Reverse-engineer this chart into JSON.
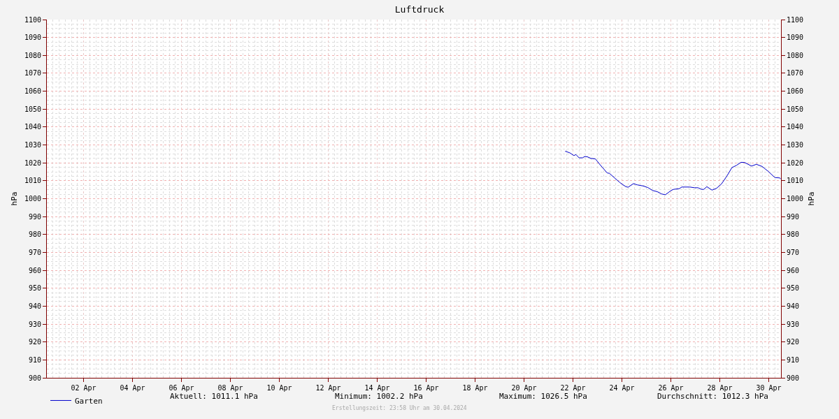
{
  "chart_data": {
    "type": "line",
    "title": "Luftdruck",
    "ylabel": "hPa",
    "y2label": "hPa",
    "xlim": [
      "2024-04-01",
      "2024-05-01"
    ],
    "xticks": [
      {
        "value": "2024-04-02T12:00",
        "label": "02 Apr"
      },
      {
        "value": "2024-04-04T12:00",
        "label": "04 Apr"
      },
      {
        "value": "2024-04-06T12:00",
        "label": "06 Apr"
      },
      {
        "value": "2024-04-08T12:00",
        "label": "08 Apr"
      },
      {
        "value": "2024-04-10T12:00",
        "label": "10 Apr"
      },
      {
        "value": "2024-04-12T12:00",
        "label": "12 Apr"
      },
      {
        "value": "2024-04-14T12:00",
        "label": "14 Apr"
      },
      {
        "value": "2024-04-16T12:00",
        "label": "16 Apr"
      },
      {
        "value": "2024-04-18T12:00",
        "label": "18 Apr"
      },
      {
        "value": "2024-04-20T12:00",
        "label": "20 Apr"
      },
      {
        "value": "2024-04-22T12:00",
        "label": "22 Apr"
      },
      {
        "value": "2024-04-24T12:00",
        "label": "24 Apr"
      },
      {
        "value": "2024-04-26T12:00",
        "label": "26 Apr"
      },
      {
        "value": "2024-04-28T12:00",
        "label": "28 Apr"
      },
      {
        "value": "2024-04-30T12:00",
        "label": "30 Apr"
      }
    ],
    "ylim": [
      900,
      1100
    ],
    "yticks": [
      900,
      910,
      920,
      930,
      940,
      950,
      960,
      970,
      980,
      990,
      1000,
      1010,
      1020,
      1030,
      1040,
      1050,
      1060,
      1070,
      1080,
      1090,
      1100
    ],
    "y2lim": [
      900,
      1100
    ],
    "y2ticks": [
      900,
      910,
      920,
      930,
      940,
      950,
      960,
      970,
      980,
      990,
      1000,
      1010,
      1020,
      1030,
      1040,
      1050,
      1060,
      1070,
      1080,
      1090,
      1100
    ],
    "grid": true,
    "legend": "bottom left",
    "line_style": "solid",
    "marker": "none",
    "series": [
      {
        "name": "Garten",
        "color": "#0000cc",
        "x": [
          "2024-04-22T04:20",
          "2024-04-22T08:50",
          "2024-04-22T12:50",
          "2024-04-22T15:00",
          "2024-04-22T18:00",
          "2024-04-22T21:30",
          "2024-04-22T23:20",
          "2024-04-23T02:00",
          "2024-04-23T05:30",
          "2024-04-23T10:00",
          "2024-04-23T14:40",
          "2024-04-23T21:30",
          "2024-04-23T23:50",
          "2024-04-24T10:00",
          "2024-04-24T15:50",
          "2024-04-24T18:00",
          "2024-04-24T23:20",
          "2024-04-25T03:10",
          "2024-04-25T08:50",
          "2024-04-25T13:30",
          "2024-04-25T18:00",
          "2024-04-25T22:40",
          "2024-04-26T03:10",
          "2024-04-26T06:40",
          "2024-04-26T12:20",
          "2024-04-26T14:40",
          "2024-04-26T20:20",
          "2024-04-26T22:40",
          "2024-04-27T06:40",
          "2024-04-27T11:10",
          "2024-04-27T14:40",
          "2024-04-27T18:00",
          "2024-04-27T20:20",
          "2024-04-27T23:20",
          "2024-04-28T04:20",
          "2024-04-28T08:50",
          "2024-04-28T13:30",
          "2024-04-28T19:10",
          "2024-04-28T23:50",
          "2024-04-29T04:20",
          "2024-04-29T08:50",
          "2024-04-29T12:20",
          "2024-04-29T19:10",
          "2024-04-29T23:50",
          "2024-04-30T05:30",
          "2024-04-30T11:10",
          "2024-04-30T18:00",
          "2024-04-30T22:40",
          "2024-04-30T23:50"
        ],
        "values": [
          1026.5,
          1025.6,
          1024.1,
          1024.6,
          1022.8,
          1022.8,
          1023.5,
          1023.4,
          1022.5,
          1022.2,
          1018.9,
          1014.4,
          1014.1,
          1009.0,
          1006.7,
          1006.4,
          1008.4,
          1007.7,
          1007.1,
          1006.2,
          1004.6,
          1003.9,
          1002.6,
          1002.2,
          1004.6,
          1005.2,
          1005.6,
          1006.5,
          1006.5,
          1006.1,
          1006.1,
          1005.2,
          1005.2,
          1006.7,
          1004.8,
          1005.8,
          1008.1,
          1012.8,
          1017.3,
          1018.6,
          1020.3,
          1020.2,
          1018.2,
          1019.2,
          1018.0,
          1015.4,
          1011.8,
          1011.6,
          1011.1
        ]
      }
    ],
    "annotations": [
      "Aktuell: 1011.1 hPa",
      "Minimum: 1002.2 hPa",
      "Maximum: 1026.5 hPa",
      "Durchschnitt: 1012.3 hPa",
      "Erstellungszeit: 23:58 Uhr am 30.04.2024"
    ]
  }
}
